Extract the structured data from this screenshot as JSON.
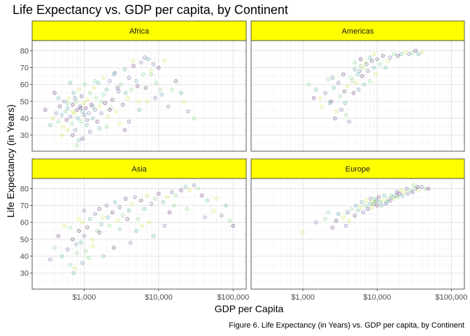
{
  "chart_data": {
    "type": "scatter",
    "title": "Life Expectancy vs. GDP per capita, by Continent",
    "xlabel": "GDP per Capita",
    "ylabel": "Life Expectancy (in Years)",
    "caption": "Figure 6. Life Expectancy (in Years) vs. GDP per capita, by Continent",
    "x_scale": "log10",
    "xlim": [
      200,
      150000
    ],
    "ylim": [
      20.5,
      86
    ],
    "x_ticks": [
      1000,
      10000,
      100000
    ],
    "x_tick_labels": [
      "$1,000",
      "$10,000",
      "$100,000"
    ],
    "y_ticks": [
      30,
      40,
      50,
      60,
      70,
      80
    ],
    "y_tick_labels": [
      "30",
      "40",
      "50",
      "60",
      "70",
      "80"
    ],
    "grid": true,
    "legend": "none",
    "strip_color": "#ffff00",
    "point_palette": [
      "#440154",
      "#3b528b",
      "#21908c",
      "#5dc963",
      "#c7e020"
    ],
    "panels": [
      {
        "name": "Africa",
        "points": [
          [
            300,
            45
          ],
          [
            350,
            36
          ],
          [
            380,
            40
          ],
          [
            420,
            43
          ],
          [
            450,
            38
          ],
          [
            470,
            47
          ],
          [
            500,
            42
          ],
          [
            520,
            35
          ],
          [
            540,
            50
          ],
          [
            560,
            44
          ],
          [
            580,
            39
          ],
          [
            600,
            46
          ],
          [
            620,
            52
          ],
          [
            650,
            41
          ],
          [
            680,
            37
          ],
          [
            700,
            48
          ],
          [
            720,
            55
          ],
          [
            740,
            43
          ],
          [
            760,
            33
          ],
          [
            780,
            50
          ],
          [
            800,
            45
          ],
          [
            820,
            40
          ],
          [
            850,
            57
          ],
          [
            880,
            47
          ],
          [
            900,
            38
          ],
          [
            920,
            53
          ],
          [
            950,
            44
          ],
          [
            980,
            49
          ],
          [
            1000,
            42
          ],
          [
            1020,
            60
          ],
          [
            1050,
            46
          ],
          [
            1080,
            36
          ],
          [
            1100,
            51
          ],
          [
            1150,
            43
          ],
          [
            1200,
            55
          ],
          [
            1250,
            48
          ],
          [
            1300,
            40
          ],
          [
            1350,
            58
          ],
          [
            1400,
            45
          ],
          [
            1450,
            52
          ],
          [
            1500,
            38
          ],
          [
            1550,
            61
          ],
          [
            1600,
            47
          ],
          [
            1700,
            43
          ],
          [
            1800,
            54
          ],
          [
            1900,
            49
          ],
          [
            2000,
            57
          ],
          [
            2100,
            41
          ],
          [
            2200,
            62
          ],
          [
            2300,
            46
          ],
          [
            2400,
            51
          ],
          [
            2500,
            66
          ],
          [
            2700,
            44
          ],
          [
            2900,
            56
          ],
          [
            3100,
            60
          ],
          [
            3300,
            48
          ],
          [
            3500,
            69
          ],
          [
            3800,
            52
          ],
          [
            4000,
            64
          ],
          [
            4300,
            57
          ],
          [
            4600,
            71
          ],
          [
            5000,
            62
          ],
          [
            5400,
            50
          ],
          [
            5800,
            73
          ],
          [
            6200,
            66
          ],
          [
            6700,
            58
          ],
          [
            7200,
            75
          ],
          [
            7800,
            68
          ],
          [
            8500,
            72
          ],
          [
            9200,
            61
          ],
          [
            10000,
            70
          ],
          [
            11000,
            54
          ],
          [
            12000,
            74
          ],
          [
            13500,
            47
          ],
          [
            15000,
            57
          ],
          [
            17000,
            62
          ],
          [
            20000,
            55
          ],
          [
            22000,
            50
          ],
          [
            25000,
            44
          ],
          [
            30000,
            40
          ],
          [
            700,
            30
          ],
          [
            850,
            27
          ],
          [
            600,
            33
          ],
          [
            1200,
            32
          ],
          [
            800,
            24
          ],
          [
            950,
            28
          ],
          [
            1600,
            34
          ],
          [
            3000,
            37
          ],
          [
            4000,
            38
          ],
          [
            2000,
            35
          ],
          [
            3500,
            33
          ],
          [
            5500,
            45
          ],
          [
            7000,
            50
          ],
          [
            9000,
            52
          ],
          [
            10500,
            57
          ],
          [
            400,
            55
          ],
          [
            650,
            61
          ],
          [
            1800,
            64
          ],
          [
            2600,
            67
          ],
          [
            600,
            49
          ],
          [
            900,
            46
          ],
          [
            1300,
            47
          ],
          [
            700,
            44
          ],
          [
            1100,
            39
          ],
          [
            1700,
            50
          ],
          [
            2200,
            45
          ],
          [
            450,
            52
          ],
          [
            500,
            30
          ],
          [
            750,
            52
          ],
          [
            1400,
            62
          ],
          [
            2800,
            58
          ],
          [
            3600,
            55
          ],
          [
            4500,
            74
          ],
          [
            6500,
            76
          ],
          [
            8000,
            66
          ],
          [
            5200,
            59
          ]
        ]
      },
      {
        "name": "Americas",
        "points": [
          [
            1200,
            60
          ],
          [
            1400,
            52
          ],
          [
            1500,
            57
          ],
          [
            1800,
            47
          ],
          [
            2000,
            55
          ],
          [
            2200,
            63
          ],
          [
            2400,
            50
          ],
          [
            2600,
            58
          ],
          [
            2800,
            44
          ],
          [
            3000,
            61
          ],
          [
            3200,
            53
          ],
          [
            3500,
            66
          ],
          [
            3700,
            49
          ],
          [
            4000,
            59
          ],
          [
            4200,
            38
          ],
          [
            4500,
            64
          ],
          [
            4800,
            55
          ],
          [
            5000,
            69
          ],
          [
            5300,
            61
          ],
          [
            5600,
            57
          ],
          [
            6000,
            71
          ],
          [
            6300,
            65
          ],
          [
            6700,
            60
          ],
          [
            7000,
            73
          ],
          [
            7500,
            68
          ],
          [
            8000,
            62
          ],
          [
            8500,
            74
          ],
          [
            9000,
            70
          ],
          [
            9500,
            66
          ],
          [
            10000,
            75
          ],
          [
            11000,
            72
          ],
          [
            12000,
            77
          ],
          [
            13000,
            70
          ],
          [
            14000,
            74
          ],
          [
            15000,
            76
          ],
          [
            17000,
            78
          ],
          [
            19000,
            77
          ],
          [
            21000,
            78
          ],
          [
            24000,
            79
          ],
          [
            27000,
            78
          ],
          [
            30000,
            79
          ],
          [
            33000,
            80
          ],
          [
            36000,
            78
          ],
          [
            40000,
            79
          ],
          [
            3300,
            45
          ],
          [
            3800,
            42
          ],
          [
            2700,
            40
          ],
          [
            5500,
            66
          ],
          [
            6500,
            70
          ],
          [
            7200,
            72
          ],
          [
            4600,
            62
          ],
          [
            3600,
            56
          ],
          [
            2300,
            49
          ],
          [
            1700,
            52
          ],
          [
            2500,
            64
          ],
          [
            5000,
            73
          ],
          [
            6000,
            75
          ],
          [
            8000,
            76
          ],
          [
            9000,
            78
          ],
          [
            5800,
            68
          ]
        ]
      },
      {
        "name": "Asia",
        "points": [
          [
            350,
            38
          ],
          [
            400,
            45
          ],
          [
            450,
            52
          ],
          [
            500,
            40
          ],
          [
            550,
            58
          ],
          [
            600,
            44
          ],
          [
            650,
            35
          ],
          [
            700,
            50
          ],
          [
            720,
            30
          ],
          [
            750,
            33
          ],
          [
            780,
            47
          ],
          [
            800,
            42
          ],
          [
            850,
            55
          ],
          [
            900,
            48
          ],
          [
            950,
            60
          ],
          [
            1000,
            52
          ],
          [
            1050,
            43
          ],
          [
            1100,
            57
          ],
          [
            1200,
            62
          ],
          [
            1300,
            50
          ],
          [
            1400,
            65
          ],
          [
            1500,
            55
          ],
          [
            1600,
            68
          ],
          [
            1700,
            59
          ],
          [
            1800,
            63
          ],
          [
            2000,
            70
          ],
          [
            2200,
            58
          ],
          [
            2400,
            66
          ],
          [
            2600,
            72
          ],
          [
            2800,
            61
          ],
          [
            3000,
            69
          ],
          [
            3300,
            64
          ],
          [
            3600,
            74
          ],
          [
            4000,
            67
          ],
          [
            4400,
            71
          ],
          [
            4800,
            75
          ],
          [
            5300,
            62
          ],
          [
            5800,
            73
          ],
          [
            6400,
            68
          ],
          [
            7000,
            76
          ],
          [
            8000,
            71
          ],
          [
            9000,
            74
          ],
          [
            10000,
            77
          ],
          [
            11500,
            72
          ],
          [
            13000,
            75
          ],
          [
            15000,
            78
          ],
          [
            17000,
            76
          ],
          [
            20000,
            79
          ],
          [
            23000,
            81
          ],
          [
            26000,
            79
          ],
          [
            30000,
            82
          ],
          [
            34000,
            80
          ],
          [
            38000,
            76
          ],
          [
            45000,
            73
          ],
          [
            55000,
            67
          ],
          [
            70000,
            64
          ],
          [
            90000,
            61
          ],
          [
            100000,
            58
          ],
          [
            80000,
            70
          ],
          [
            60000,
            74
          ],
          [
            42000,
            63
          ],
          [
            24000,
            68
          ],
          [
            14000,
            66
          ],
          [
            8500,
            52
          ],
          [
            6000,
            58
          ],
          [
            4200,
            48
          ],
          [
            3000,
            56
          ],
          [
            2500,
            45
          ],
          [
            1800,
            40
          ],
          [
            1300,
            46
          ],
          [
            950,
            36
          ],
          [
            1150,
            39
          ],
          [
            3800,
            62
          ],
          [
            5000,
            55
          ],
          [
            7500,
            60
          ],
          [
            12000,
            58
          ],
          [
            16000,
            70
          ],
          [
            1600,
            54
          ],
          [
            2100,
            63
          ],
          [
            850,
            62
          ],
          [
            1000,
            67
          ],
          [
            650,
            57
          ]
        ]
      },
      {
        "name": "Europe",
        "points": [
          [
            1000,
            54
          ],
          [
            1500,
            60
          ],
          [
            2000,
            62
          ],
          [
            2500,
            57
          ],
          [
            3000,
            65
          ],
          [
            3500,
            63
          ],
          [
            4000,
            66
          ],
          [
            4500,
            68
          ],
          [
            5000,
            64
          ],
          [
            5500,
            67
          ],
          [
            6000,
            69
          ],
          [
            6500,
            66
          ],
          [
            7000,
            70
          ],
          [
            7500,
            68
          ],
          [
            8000,
            71
          ],
          [
            8500,
            69
          ],
          [
            9000,
            71
          ],
          [
            9500,
            72
          ],
          [
            10000,
            70
          ],
          [
            11000,
            72
          ],
          [
            12000,
            73
          ],
          [
            13000,
            71
          ],
          [
            14000,
            74
          ],
          [
            15000,
            73
          ],
          [
            16000,
            75
          ],
          [
            17000,
            74
          ],
          [
            18000,
            76
          ],
          [
            19000,
            75
          ],
          [
            20000,
            77
          ],
          [
            22000,
            76
          ],
          [
            24000,
            78
          ],
          [
            26000,
            77
          ],
          [
            28000,
            79
          ],
          [
            30000,
            78
          ],
          [
            33000,
            80
          ],
          [
            36000,
            79
          ],
          [
            40000,
            81
          ],
          [
            45000,
            80
          ],
          [
            49000,
            80
          ],
          [
            6200,
            72
          ],
          [
            7200,
            73
          ],
          [
            8200,
            74
          ],
          [
            9200,
            74
          ],
          [
            10500,
            75
          ],
          [
            12500,
            76
          ],
          [
            4200,
            61
          ],
          [
            3800,
            58
          ],
          [
            2200,
            66
          ],
          [
            2800,
            61
          ],
          [
            13500,
            72
          ],
          [
            21000,
            79
          ],
          [
            25000,
            80
          ],
          [
            31000,
            82
          ],
          [
            35000,
            81
          ],
          [
            11500,
            70
          ],
          [
            8800,
            72
          ],
          [
            9800,
            73
          ],
          [
            15500,
            76
          ],
          [
            18500,
            78
          ],
          [
            5200,
            70
          ]
        ]
      }
    ]
  }
}
